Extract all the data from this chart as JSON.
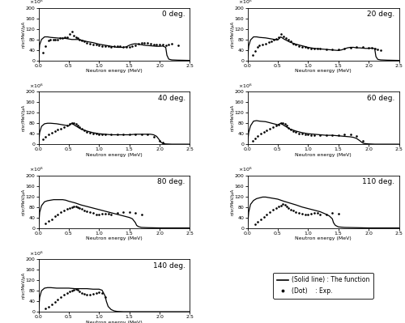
{
  "angles": [
    "0 deg.",
    "20 deg.",
    "40 deg.",
    "60 deg.",
    "80 deg.",
    "110 deg.",
    "140 deg."
  ],
  "xlabel": "Neutron energy (MeV)",
  "ylabel": "n/sr/MeV/μA",
  "xmax": 2.5,
  "ymax": 200,
  "yticks": [
    0,
    40,
    80,
    120,
    160,
    200
  ],
  "xticks": [
    0,
    0.5,
    1.0,
    1.5,
    2.0,
    2.5
  ],
  "legend_line": "— (Solid line)：The function",
  "legend_dot": "· (Dot) ：Exp."
}
